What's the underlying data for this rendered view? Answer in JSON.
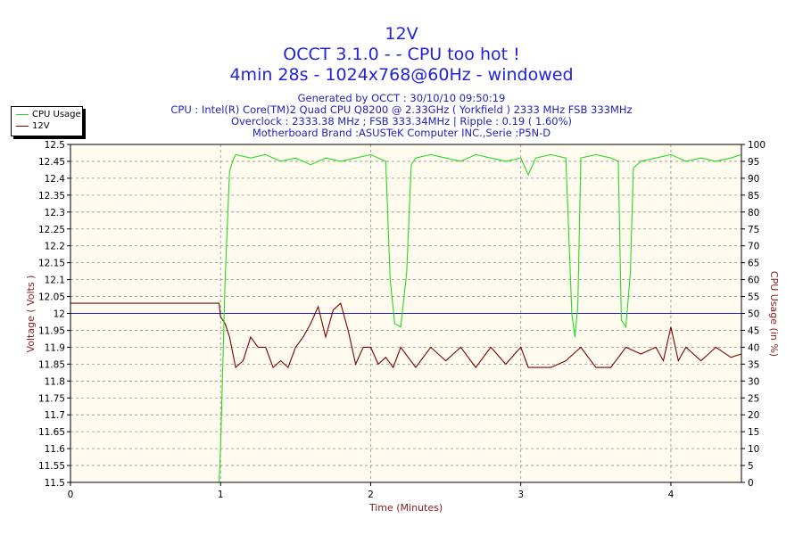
{
  "header": {
    "title_line1": "12V",
    "title_line2": "OCCT 3.1.0 -  - CPU too hot !",
    "title_line3": "4min 28s - 1024x768@60Hz - windowed",
    "info_line1": "Generated by OCCT : 30/10/10 09:50:19",
    "info_line2": "CPU : Intel(R) Core(TM)2 Quad CPU Q8200 @ 2.33GHz ( Yorkfield ) 2333 MHz FSB 333MHz",
    "info_line3": "Overclock : 2333.38 MHz ; FSB 333.34MHz | Ripple : 0.19 ( 1.60%)",
    "info_line4": "Motherboard Brand :ASUSTeK Computer INC.,Serie :P5N-D"
  },
  "colors": {
    "cpu_line": "#22dd22",
    "voltage_line": "#7a0000",
    "ref_line": "#2222bb",
    "plot_bg": "#fffbee",
    "axis_label": "#8b1a1a",
    "grid": "#909090"
  },
  "chart_data": {
    "type": "line",
    "xlabel": "Time (Minutes)",
    "ylabel": "Voltage ( Volts )",
    "y2label": "CPU Usage (in %)",
    "xlim": [
      0,
      4.47
    ],
    "ylim": [
      11.5,
      12.5
    ],
    "y2lim": [
      0,
      100
    ],
    "grid": true,
    "legend_position": "top-left",
    "x_ticks": [
      0,
      1,
      2,
      3,
      4
    ],
    "y_ticks": [
      11.5,
      11.55,
      11.6,
      11.65,
      11.7,
      11.75,
      11.8,
      11.85,
      11.9,
      11.95,
      12,
      12.05,
      12.1,
      12.15,
      12.2,
      12.25,
      12.3,
      12.35,
      12.4,
      12.45,
      12.5
    ],
    "y2_ticks": [
      0,
      5,
      10,
      15,
      20,
      25,
      30,
      35,
      40,
      45,
      50,
      55,
      60,
      65,
      70,
      75,
      80,
      85,
      90,
      95,
      100
    ],
    "reference_line": 12,
    "series": [
      {
        "name": "CPU Usage",
        "axis": "right",
        "x": [
          0.99,
          1.0,
          1.03,
          1.06,
          1.08,
          1.1,
          1.2,
          1.3,
          1.4,
          1.5,
          1.6,
          1.7,
          1.8,
          1.9,
          2.0,
          2.1,
          2.13,
          2.16,
          2.2,
          2.24,
          2.27,
          2.3,
          2.4,
          2.5,
          2.6,
          2.7,
          2.8,
          2.9,
          3.0,
          3.05,
          3.1,
          3.2,
          3.3,
          3.34,
          3.36,
          3.38,
          3.4,
          3.5,
          3.6,
          3.65,
          3.67,
          3.7,
          3.73,
          3.75,
          3.8,
          3.9,
          4.0,
          4.1,
          4.2,
          4.3,
          4.4,
          4.47
        ],
        "values": [
          0,
          10,
          60,
          92,
          95,
          97,
          96,
          97,
          95,
          96,
          94,
          96,
          95,
          96,
          97,
          95,
          60,
          47,
          46,
          62,
          94,
          96,
          97,
          96,
          95,
          97,
          96,
          95,
          96,
          91,
          96,
          97,
          96,
          50,
          43,
          52,
          96,
          97,
          96,
          95,
          48,
          46,
          62,
          93,
          95,
          96,
          97,
          95,
          96,
          95,
          96,
          97
        ]
      },
      {
        "name": "12V",
        "axis": "left",
        "x": [
          0,
          0.5,
          0.99,
          1.0,
          1.03,
          1.06,
          1.1,
          1.15,
          1.2,
          1.25,
          1.3,
          1.35,
          1.4,
          1.45,
          1.5,
          1.55,
          1.6,
          1.65,
          1.7,
          1.75,
          1.8,
          1.85,
          1.9,
          1.95,
          2.0,
          2.05,
          2.1,
          2.15,
          2.2,
          2.3,
          2.4,
          2.5,
          2.6,
          2.7,
          2.8,
          2.9,
          3.0,
          3.05,
          3.1,
          3.2,
          3.3,
          3.4,
          3.5,
          3.6,
          3.7,
          3.8,
          3.9,
          3.95,
          4.0,
          4.05,
          4.1,
          4.2,
          4.3,
          4.4,
          4.47
        ],
        "values": [
          12.03,
          12.03,
          12.03,
          11.99,
          11.97,
          11.93,
          11.84,
          11.86,
          11.93,
          11.9,
          11.9,
          11.84,
          11.86,
          11.84,
          11.9,
          11.93,
          11.97,
          12.02,
          11.93,
          12.01,
          12.03,
          11.95,
          11.85,
          11.9,
          11.9,
          11.85,
          11.87,
          11.84,
          11.9,
          11.84,
          11.9,
          11.86,
          11.9,
          11.84,
          11.9,
          11.85,
          11.9,
          11.84,
          11.84,
          11.84,
          11.86,
          11.9,
          11.84,
          11.84,
          11.9,
          11.88,
          11.9,
          11.86,
          11.96,
          11.86,
          11.9,
          11.86,
          11.9,
          11.87,
          11.88
        ]
      }
    ]
  }
}
